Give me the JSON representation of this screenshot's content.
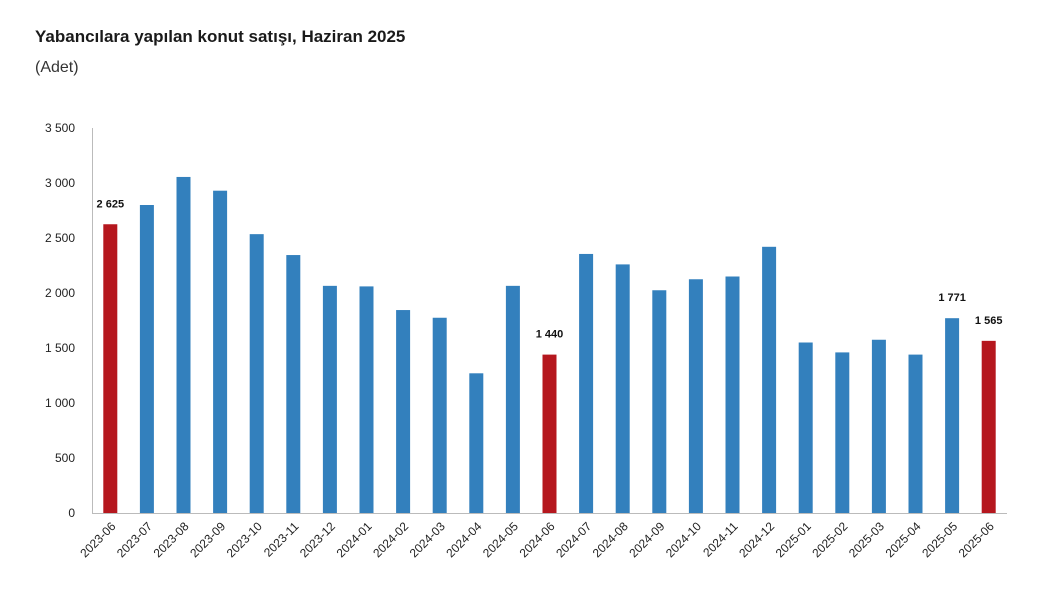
{
  "chart_data": {
    "type": "bar",
    "title": "Yabancılara yapılan konut satışı, Haziran 2025",
    "subtitle": "(Adet)",
    "xlabel": "",
    "ylabel": "",
    "ylim": [
      0,
      3500
    ],
    "yticks": [
      0,
      500,
      1000,
      1500,
      2000,
      2500,
      3000,
      3500
    ],
    "ytick_labels": [
      "0",
      "500",
      "1 000",
      "1 500",
      "2 000",
      "2 500",
      "3 000",
      "3 500"
    ],
    "grid": false,
    "legend": "none",
    "categories": [
      "2023-06",
      "2023-07",
      "2023-08",
      "2023-09",
      "2023-10",
      "2023-11",
      "2023-12",
      "2024-01",
      "2024-02",
      "2024-03",
      "2024-04",
      "2024-05",
      "2024-06",
      "2024-07",
      "2024-08",
      "2024-09",
      "2024-10",
      "2024-11",
      "2024-12",
      "2025-01",
      "2025-02",
      "2025-03",
      "2025-04",
      "2025-05",
      "2025-06"
    ],
    "values": [
      2625,
      2800,
      3055,
      2930,
      2535,
      2345,
      2065,
      2060,
      1845,
      1775,
      1270,
      2065,
      1440,
      2355,
      2260,
      2025,
      2125,
      2150,
      2420,
      1550,
      1460,
      1575,
      1440,
      1771,
      1565
    ],
    "highlighted": [
      "2023-06",
      "2024-06",
      "2025-06"
    ],
    "data_labels": [
      {
        "category": "2023-06",
        "text": "2 625"
      },
      {
        "category": "2024-06",
        "text": "1 440"
      },
      {
        "category": "2025-05",
        "text": "1 771"
      },
      {
        "category": "2025-06",
        "text": "1 565"
      }
    ],
    "colors": {
      "default": "#3380bd",
      "highlight": "#b5171e",
      "axis": "#bbbbbb"
    }
  }
}
